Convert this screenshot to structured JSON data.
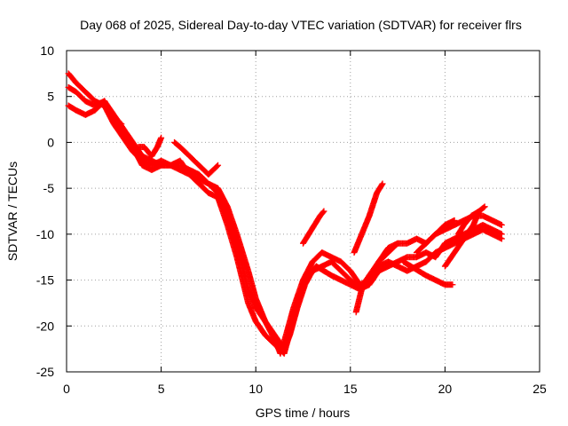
{
  "chart_data": {
    "type": "scatter",
    "title": "Day 068 of 2025, Sidereal Day-to-day VTEC variation (SDTVAR) for receiver flrs",
    "xlabel": "GPS time / hours",
    "ylabel": "SDTVAR / TECUs",
    "xlim": [
      0,
      25
    ],
    "ylim": [
      -25,
      10
    ],
    "xticks": [
      "0",
      "5",
      "10",
      "15",
      "20",
      "25"
    ],
    "yticks": [
      "10",
      "5",
      "0",
      "-5",
      "-10",
      "-15",
      "-20",
      "-25"
    ],
    "grid": true,
    "marker": "plus",
    "color": "#ff0000",
    "series": [
      {
        "x": [
          0.1,
          0.5,
          1.0,
          1.5,
          2.0,
          2.5,
          3.0,
          3.5,
          4.0,
          4.5,
          5.0,
          5.5,
          6.0,
          6.5,
          7.0,
          7.5,
          8.0,
          8.5,
          9.0,
          9.3,
          9.6,
          10.0,
          10.5,
          11.0,
          11.3,
          11.6,
          12.0,
          12.5,
          13.0,
          13.5,
          14.0,
          14.5,
          15.0,
          15.5,
          16.0,
          16.5,
          17.0,
          17.5,
          18.0,
          18.5,
          19.0,
          19.5,
          20.0,
          20.5,
          21.0,
          21.5,
          22.0,
          22.5,
          23.0
        ],
        "y": [
          7.5,
          6.5,
          5.5,
          4.5,
          4.0,
          2.0,
          0.5,
          -1.0,
          -2.0,
          -2.5,
          -2.0,
          -2.5,
          -3.0,
          -3.5,
          -4.0,
          -4.5,
          -5.0,
          -7.0,
          -10.0,
          -12.0,
          -14.0,
          -17.0,
          -19.5,
          -21.5,
          -23.0,
          -21.0,
          -18.0,
          -15.0,
          -13.0,
          -12.0,
          -12.5,
          -13.0,
          -14.0,
          -15.5,
          -15.0,
          -13.0,
          -12.0,
          -11.0,
          -11.0,
          -10.5,
          -11.0,
          -10.0,
          -9.5,
          -9.0,
          -8.5,
          -8.0,
          -8.0,
          -8.5,
          -9.0
        ]
      },
      {
        "x": [
          0.1,
          0.5,
          1.0,
          1.5,
          2.0,
          2.5,
          3.0,
          3.5,
          4.0,
          4.5,
          5.0,
          5.5,
          6.0,
          6.5,
          7.0,
          7.5,
          8.0,
          8.5,
          9.0,
          9.3,
          9.6,
          10.0,
          10.5,
          11.0,
          11.5,
          11.8,
          12.2,
          12.6,
          13.0,
          13.5,
          14.0,
          14.5,
          15.0,
          15.5,
          16.0,
          16.5,
          17.0,
          17.5,
          18.0,
          18.5,
          19.0,
          19.5,
          20.0,
          20.5,
          21.0,
          21.5,
          22.0,
          22.5,
          23.0
        ],
        "y": [
          6.0,
          5.5,
          4.5,
          4.0,
          4.5,
          3.0,
          1.5,
          0.0,
          -1.5,
          -2.0,
          -2.5,
          -2.5,
          -2.5,
          -3.0,
          -3.5,
          -4.5,
          -5.5,
          -8.0,
          -11.0,
          -13.5,
          -16.0,
          -18.0,
          -19.5,
          -21.0,
          -22.5,
          -21.0,
          -18.0,
          -15.5,
          -14.0,
          -13.5,
          -13.0,
          -14.0,
          -15.0,
          -16.0,
          -15.5,
          -14.0,
          -13.5,
          -13.0,
          -12.5,
          -12.5,
          -12.0,
          -12.5,
          -11.0,
          -10.5,
          -10.0,
          -9.5,
          -9.0,
          -9.5,
          -10.0
        ]
      },
      {
        "x": [
          0.1,
          0.5,
          1.0,
          1.5,
          2.0,
          2.5,
          3.0,
          3.5,
          4.0,
          4.5,
          5.0,
          5.5,
          6.0,
          6.5,
          7.0,
          7.5,
          8.0,
          8.5,
          9.0,
          9.3,
          9.6,
          10.0,
          10.5,
          11.0,
          11.5,
          11.9,
          12.3,
          12.7,
          13.2,
          13.6,
          14.0,
          14.5,
          15.0,
          15.5,
          16.0,
          16.5,
          17.0,
          17.5,
          18.0,
          18.5,
          19.0,
          19.5,
          20.0,
          20.5,
          21.0,
          21.5,
          22.0,
          22.5,
          23.0
        ],
        "y": [
          4.0,
          3.5,
          3.0,
          3.5,
          4.5,
          2.5,
          1.0,
          -0.5,
          -2.5,
          -3.0,
          -2.5,
          -2.5,
          -2.0,
          -3.5,
          -4.5,
          -5.5,
          -6.0,
          -9.0,
          -12.5,
          -15.0,
          -17.5,
          -19.5,
          -21.0,
          -22.0,
          -23.0,
          -20.0,
          -17.0,
          -14.5,
          -13.5,
          -14.0,
          -14.5,
          -15.0,
          -15.5,
          -16.0,
          -14.5,
          -13.5,
          -13.0,
          -13.5,
          -14.0,
          -13.5,
          -13.0,
          -12.0,
          -11.5,
          -11.0,
          -10.5,
          -10.0,
          -9.5,
          -10.0,
          -10.5
        ]
      },
      {
        "x": [
          2.3,
          2.6,
          2.9
        ],
        "y": [
          3.0,
          2.5,
          2.0
        ]
      },
      {
        "x": [
          3.8,
          4.1,
          4.5,
          4.8,
          5.0
        ],
        "y": [
          -0.5,
          -0.5,
          -1.5,
          -0.5,
          0.5
        ]
      },
      {
        "x": [
          5.7,
          6.0,
          6.5,
          7.0,
          7.5,
          8.0
        ],
        "y": [
          0.0,
          -0.5,
          -1.5,
          -2.5,
          -3.5,
          -2.5
        ]
      },
      {
        "x": [
          12.5,
          12.8,
          13.1,
          13.4,
          13.6
        ],
        "y": [
          -11.0,
          -10.0,
          -9.0,
          -8.0,
          -7.5
        ]
      },
      {
        "x": [
          15.2,
          15.6,
          16.0,
          16.4,
          16.7
        ],
        "y": [
          -12.0,
          -10.0,
          -8.0,
          -5.5,
          -4.5
        ]
      },
      {
        "x": [
          15.3,
          15.6,
          16.0,
          16.5,
          17.0,
          17.5
        ],
        "y": [
          -18.5,
          -16.0,
          -14.5,
          -13.0,
          -11.5,
          -11.0
        ]
      },
      {
        "x": [
          17.8,
          18.2,
          18.6,
          19.0,
          19.5,
          20.0,
          20.4
        ],
        "y": [
          -13.0,
          -13.5,
          -14.0,
          -14.5,
          -15.0,
          -15.5,
          -15.5
        ]
      },
      {
        "x": [
          18.5,
          19.0,
          19.5,
          20.0,
          20.5
        ],
        "y": [
          -12.0,
          -11.0,
          -10.0,
          -9.0,
          -8.5
        ]
      },
      {
        "x": [
          20.0,
          20.5,
          21.0,
          21.5,
          21.8
        ],
        "y": [
          -13.5,
          -12.0,
          -10.5,
          -9.0,
          -7.5
        ]
      },
      {
        "x": [
          20.7,
          21.0,
          21.4,
          21.8,
          22.1
        ],
        "y": [
          -10.0,
          -9.0,
          -8.0,
          -7.5,
          -7.0
        ]
      }
    ]
  }
}
